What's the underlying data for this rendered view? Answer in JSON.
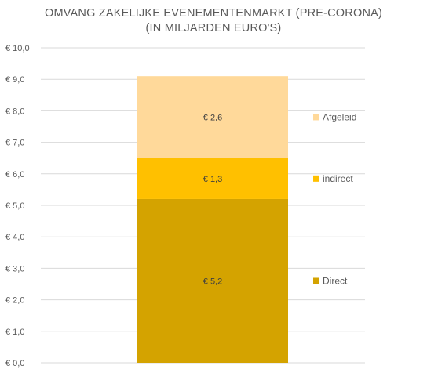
{
  "chart_data": {
    "type": "bar",
    "stacked": true,
    "title_lines": [
      "OMVANG ZAKELIJKE EVENEMENTENMARKT (PRE-CORONA)",
      "(IN MILJARDEN EURO'S)"
    ],
    "categories": [
      ""
    ],
    "series": [
      {
        "name": "Direct",
        "values": [
          5.2
        ],
        "label": "€ 5,2",
        "color": "#D4A300"
      },
      {
        "name": "indirect",
        "values": [
          1.3
        ],
        "label": "€ 1,3",
        "color": "#FFC000"
      },
      {
        "name": "Afgeleid",
        "values": [
          2.6
        ],
        "label": "€ 2,6",
        "color": "#FFD99A"
      }
    ],
    "ylim": [
      0,
      10
    ],
    "y_ticks": [
      {
        "value": 0,
        "label": "€ 0,0"
      },
      {
        "value": 1,
        "label": "€ 1,0"
      },
      {
        "value": 2,
        "label": "€ 2,0"
      },
      {
        "value": 3,
        "label": "€ 3,0"
      },
      {
        "value": 4,
        "label": "€ 4,0"
      },
      {
        "value": 5,
        "label": "€ 5,0"
      },
      {
        "value": 6,
        "label": "€ 6,0"
      },
      {
        "value": 7,
        "label": "€ 7,0"
      },
      {
        "value": 8,
        "label": "€ 8,0"
      },
      {
        "value": 9,
        "label": "€ 9,0"
      },
      {
        "value": 10,
        "label": "€ 10,0"
      }
    ],
    "grid": true,
    "legend_position": "right",
    "legend_order": [
      "Afgeleid",
      "indirect",
      "Direct"
    ],
    "gridline_color": "#D9D9D9",
    "text_color": "#595959"
  }
}
